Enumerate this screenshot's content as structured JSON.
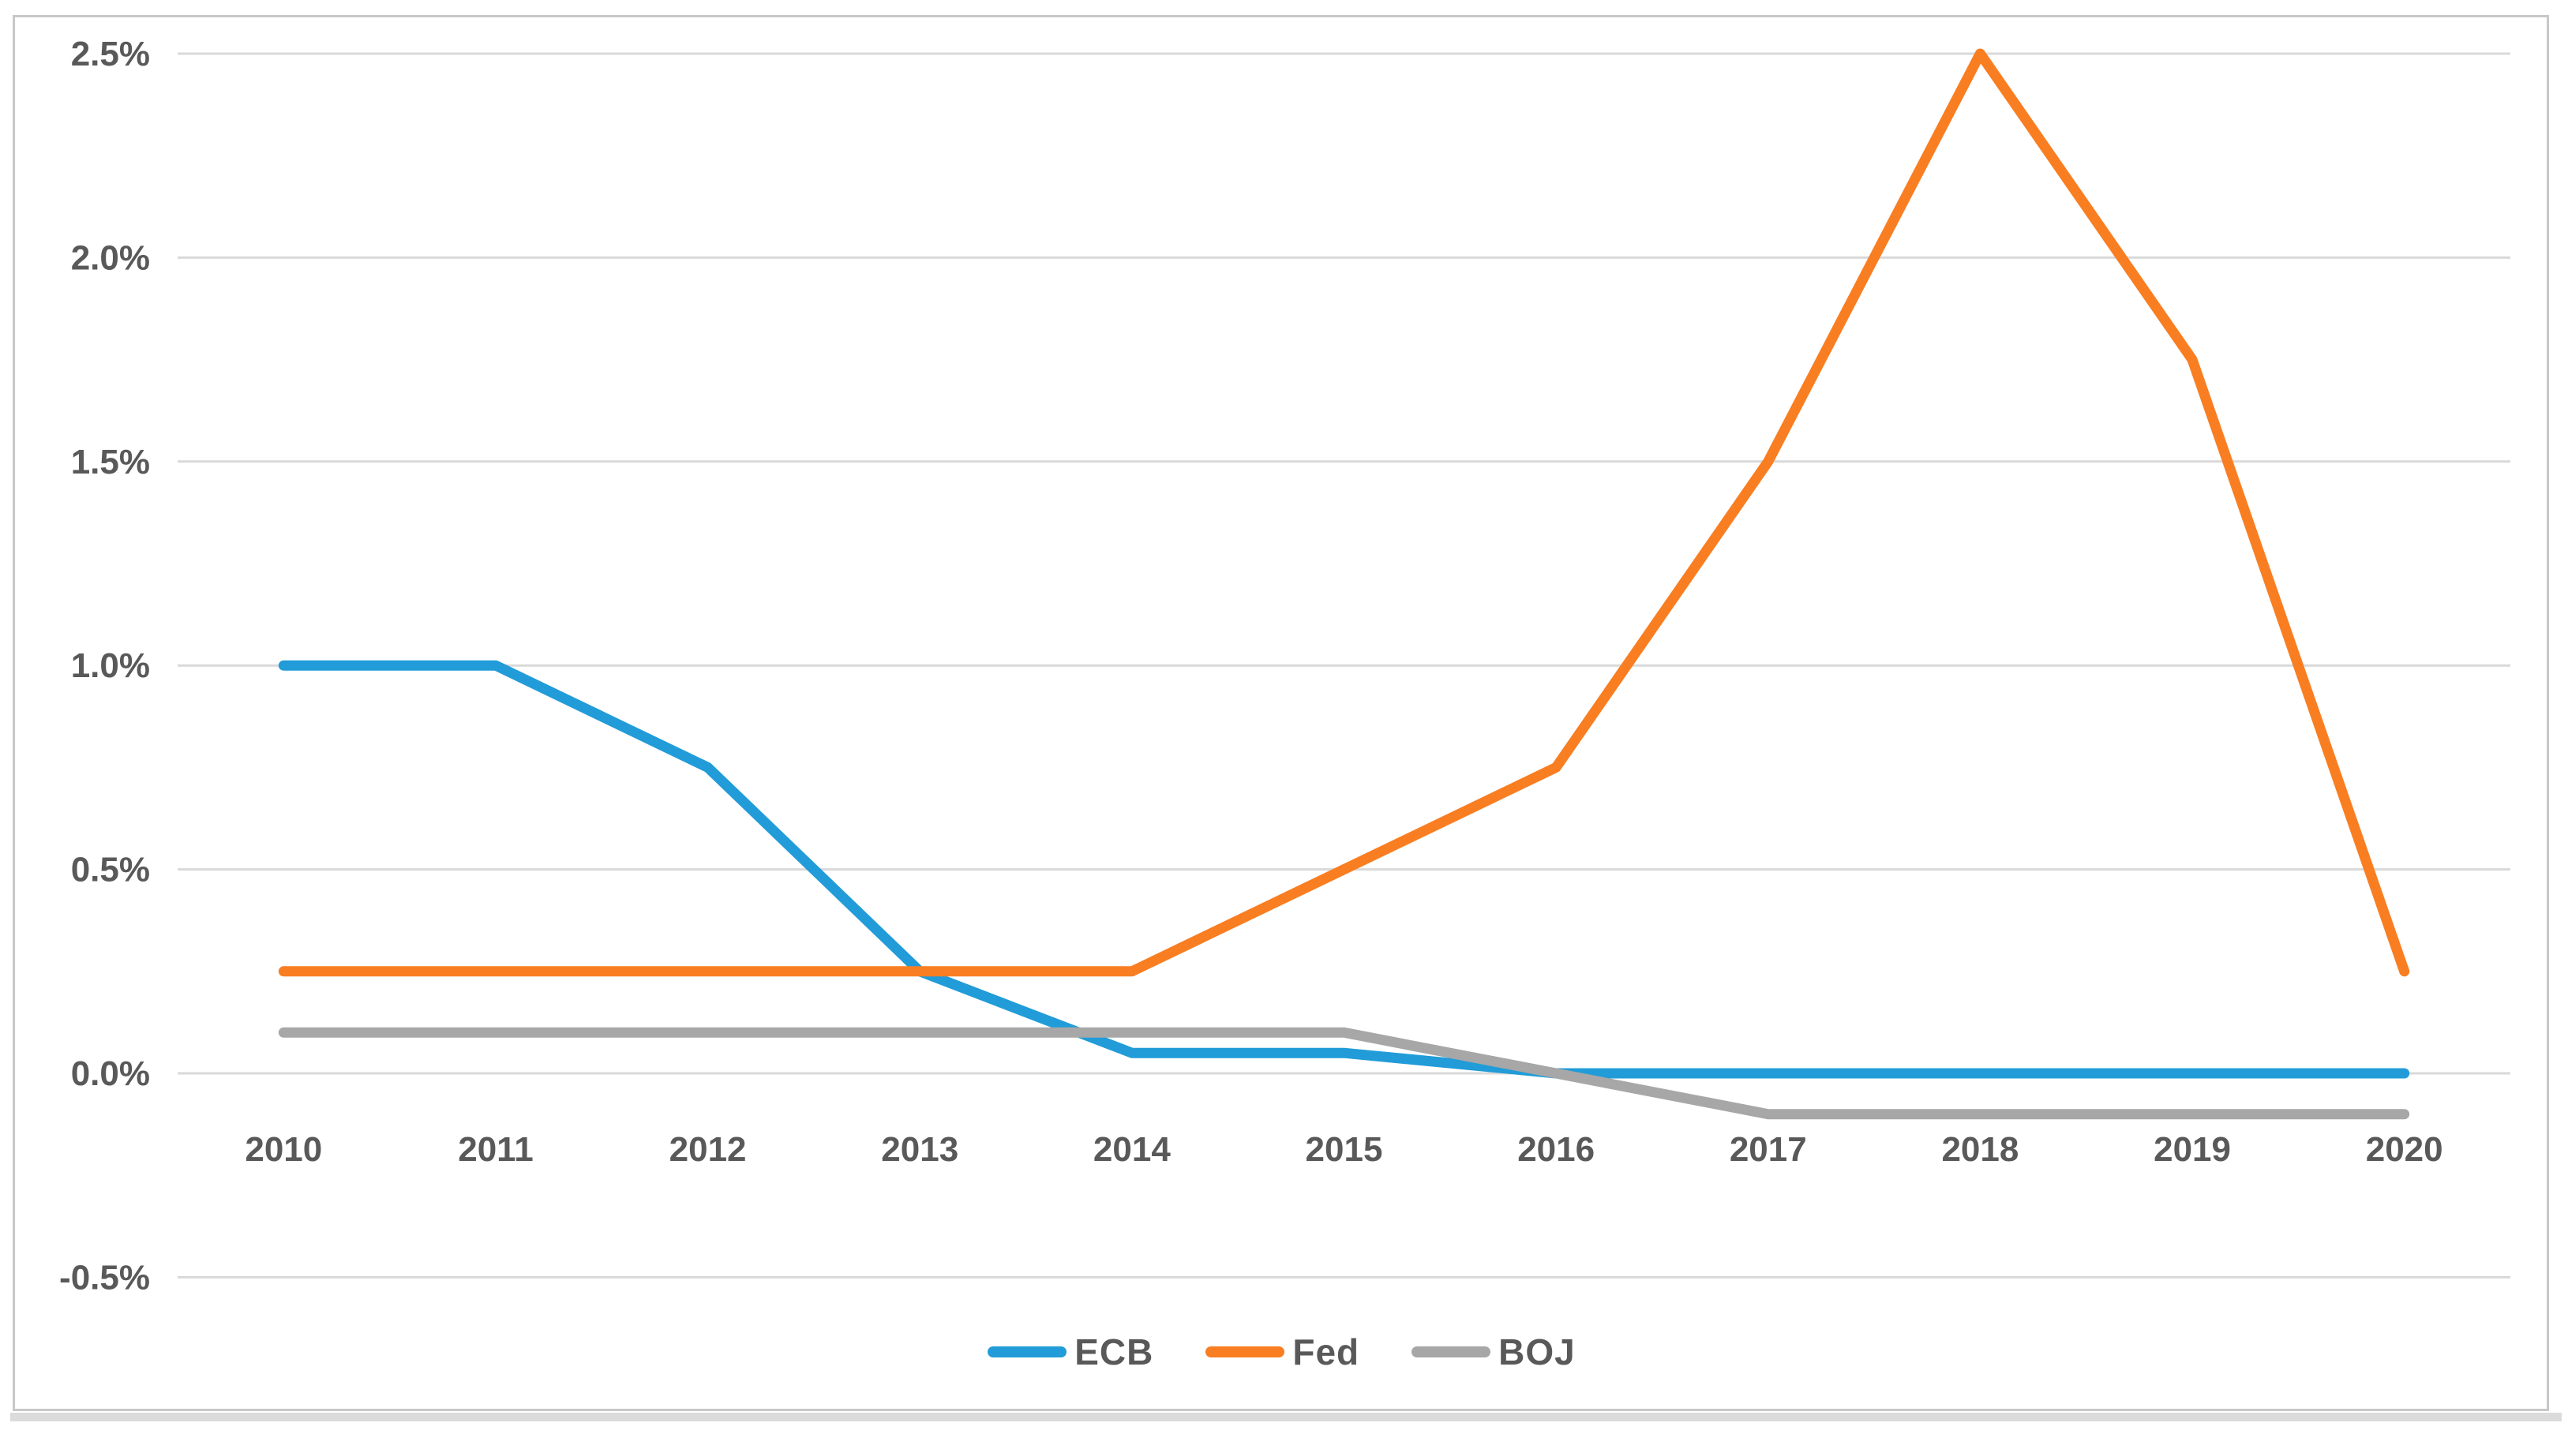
{
  "chart_data": {
    "type": "line",
    "categories": [
      "2010",
      "2011",
      "2012",
      "2013",
      "2014",
      "2015",
      "2016",
      "2017",
      "2018",
      "2019",
      "2020"
    ],
    "series": [
      {
        "name": "ECB",
        "color": "#219cd8",
        "values": [
          1.0,
          1.0,
          0.75,
          0.25,
          0.05,
          0.05,
          0.0,
          0.0,
          0.0,
          0.0,
          0.0
        ]
      },
      {
        "name": "Fed",
        "color": "#f97e22",
        "values": [
          0.25,
          0.25,
          0.25,
          0.25,
          0.25,
          0.5,
          0.75,
          1.5,
          2.5,
          1.75,
          0.25
        ]
      },
      {
        "name": "BOJ",
        "color": "#a7a7a7",
        "values": [
          0.1,
          0.1,
          0.1,
          0.1,
          0.1,
          0.1,
          0.0,
          -0.1,
          -0.1,
          -0.1,
          -0.1
        ]
      }
    ],
    "y_ticks": [
      {
        "value": 2.5,
        "label": "2.5%"
      },
      {
        "value": 2.0,
        "label": "2.0%"
      },
      {
        "value": 1.5,
        "label": "1.5%"
      },
      {
        "value": 1.0,
        "label": "1.0%"
      },
      {
        "value": 0.5,
        "label": "0.5%"
      },
      {
        "value": 0.0,
        "label": "0.0%"
      },
      {
        "value": -0.5,
        "label": "-0.5%"
      }
    ],
    "ylim": [
      -0.5,
      2.5
    ],
    "unit": "%",
    "grid": true,
    "legend_position": "bottom"
  },
  "colors": {
    "gridline": "#d9d9d9",
    "axis_text": "#595959",
    "frame_border": "#c7c8c9",
    "bottom_bar": "#dbdbdb",
    "background": "#ffffff"
  }
}
